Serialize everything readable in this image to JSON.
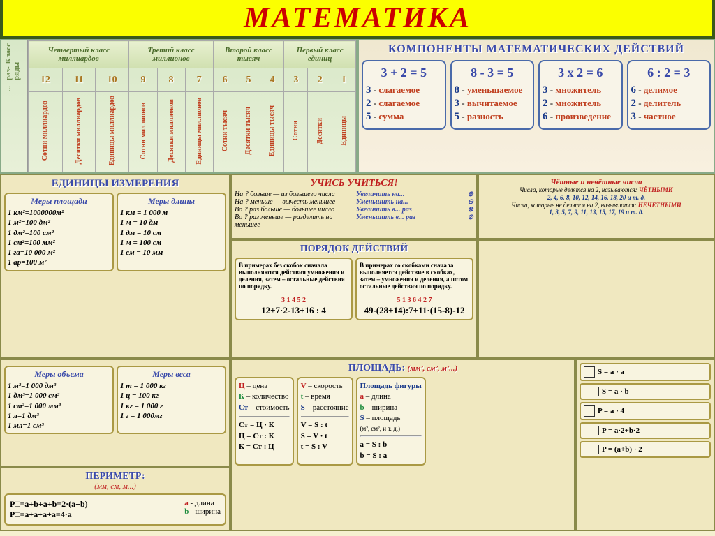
{
  "title": "МАТЕМАТИКА",
  "place_value": {
    "col_class": "Класс",
    "col_rank": "раз-\nряды",
    "classes": [
      "Четвертый класс миллиардов",
      "Третий класс миллионов",
      "Второй класс тысяч",
      "Первый класс единиц"
    ],
    "ranks": [
      "12",
      "11",
      "10",
      "9",
      "8",
      "7",
      "6",
      "5",
      "4",
      "3",
      "2",
      "1"
    ],
    "names": [
      "Сотни миллиардов",
      "Десятки миллиардов",
      "Единицы миллиардов",
      "Сотни миллионов",
      "Десятки миллионов",
      "Единицы миллионов",
      "Сотни тысяч",
      "Десятки тысяч",
      "Единицы тысяч",
      "Сотни",
      "Десятки",
      "Единицы"
    ]
  },
  "components": {
    "heading": "КОМПОНЕНТЫ МАТЕМАТИЧЕСКИХ ДЕЙСТВИЙ",
    "ops": [
      {
        "eq": "3 + 2 = 5",
        "t": [
          [
            "3",
            "слагаемое"
          ],
          [
            "2",
            "слагаемое"
          ],
          [
            "5",
            "сумма"
          ]
        ]
      },
      {
        "eq": "8 - 3 = 5",
        "t": [
          [
            "8",
            "уменьшаемое"
          ],
          [
            "3",
            "вычитаемое"
          ],
          [
            "5",
            "разность"
          ]
        ]
      },
      {
        "eq": "3 x 2 = 6",
        "t": [
          [
            "3",
            "множитель"
          ],
          [
            "2",
            "множитель"
          ],
          [
            "6",
            "произведение"
          ]
        ]
      },
      {
        "eq": "6 : 2 = 3",
        "t": [
          [
            "6",
            "делимое"
          ],
          [
            "2",
            "делитель"
          ],
          [
            "3",
            "частное"
          ]
        ]
      }
    ]
  },
  "units": {
    "heading": "ЕДИНИЦЫ ИЗМЕРЕНИЯ",
    "area": {
      "h": "Меры площади",
      "l": [
        "1 км²=1000000м²",
        "1 м²=100 дм²",
        "1 дм²=100 см²",
        "1 см²=100 мм²",
        "1 га=10 000 м²",
        "1 ар=100 м²"
      ]
    },
    "length": {
      "h": "Меры длины",
      "l": [
        "1 км = 1 000 м",
        "1 м = 10 дм",
        "1 дм = 10 см",
        "1 м = 100 см",
        "1 см = 10 мм"
      ]
    },
    "volume": {
      "h": "Меры объема",
      "l": [
        "1 м³=1 000 дм³",
        "1 дм³=1 000 см³",
        "1 см³=1 000 мм³",
        "1 л=1 дм³",
        "1 мл=1 см³"
      ]
    },
    "weight": {
      "h": "Меры веса",
      "l": [
        "1 т = 1 000 кг",
        "1 ц = 100 кг",
        "1 кг = 1 000 г",
        "1 г = 1 000мг"
      ]
    }
  },
  "learn": {
    "heading": "УЧИСЬ УЧИТЬСЯ!",
    "left": [
      "На ? больше — из большего числа",
      "На ? меньше — вычесть меньшее",
      "",
      "Во ? раз больше — большее число",
      "Во ? раз меньше — разделить на меньшее"
    ],
    "right": [
      "Увеличить на...",
      "Уменьшить на...",
      "Увеличить в... раз",
      "Уменьшить в... раз"
    ],
    "signs": [
      "⊕",
      "⊖",
      "⊗",
      "⊘"
    ]
  },
  "even": {
    "heading": "Чётные и нечётные числа",
    "t1": "Числа, которые делятся на 2, называются:",
    "w1": "ЧЁТНЫМИ",
    "ex1": "2, 4, 6, 8, 10, 12, 14, 16, 18, 20 и т. д.",
    "t2": "Числа, которые не делятся на 2, называются:",
    "w2": "НЕЧЁТНЫМИ",
    "ex2": "1, 3, 5, 7, 9, 11, 13, 15, 17, 19 и т. д."
  },
  "order": {
    "heading": "ПОРЯДОК ДЕЙСТВИЙ",
    "b1": {
      "t": "В примерах без скобок сначала выполняются действия умножения и деления, затем – остальные действия по порядку.",
      "sm": "3  1  4     5     2",
      "ex": "12+7·2-13+16 : 4"
    },
    "b2": {
      "t": "В примерах со скобками сначала выполняется действие в скобках, затем – умножения и деления, а потом остальные действия по порядку.",
      "sm": "5      1      3   6    4      2    7",
      "ex": "49-(28+14):7+11·(15-8)-12"
    }
  },
  "perim": {
    "heading": "ПЕРИМЕТР:",
    "sub": "(мм, см, м...)",
    "f1": "P□=a+b+a+b=2·(a+b)",
    "f2": "P□=a+a+a+a=4·a",
    "la": "a - длина",
    "lb": "b - ширина"
  },
  "arearow": {
    "heading": "ПЛОЩАДЬ:",
    "sub": "(мм², см², м²...)",
    "b1": [
      [
        "Ц",
        "цена",
        "r"
      ],
      [
        "К",
        "количество",
        "g"
      ],
      [
        "Ст",
        "стоимость",
        "bl"
      ]
    ],
    "b2": [
      [
        "V",
        "скорость",
        "r"
      ],
      [
        "t",
        "время",
        "g"
      ],
      [
        "S",
        "расстояние",
        "bl"
      ]
    ],
    "b3": {
      "h": "Площадь фигуры",
      "l": [
        [
          "a",
          "длина",
          "r"
        ],
        [
          "b",
          "ширина",
          "g"
        ],
        [
          "S",
          "площадь",
          "bl"
        ]
      ],
      "sub": "(м², см², и т. д.)"
    },
    "f1": [
      "Ст = Ц · К",
      "Ц = Ст : К",
      "К = Ст : Ц"
    ],
    "f2": [
      "V = S : t",
      "S = V · t",
      "t = S : V"
    ],
    "f3": [
      "a = S : b",
      "b = S : a"
    ]
  },
  "formulas": [
    "S = a · a",
    "S = a · b",
    "P = a · 4",
    "P = a·2+b·2",
    "P = (a+b) · 2"
  ]
}
